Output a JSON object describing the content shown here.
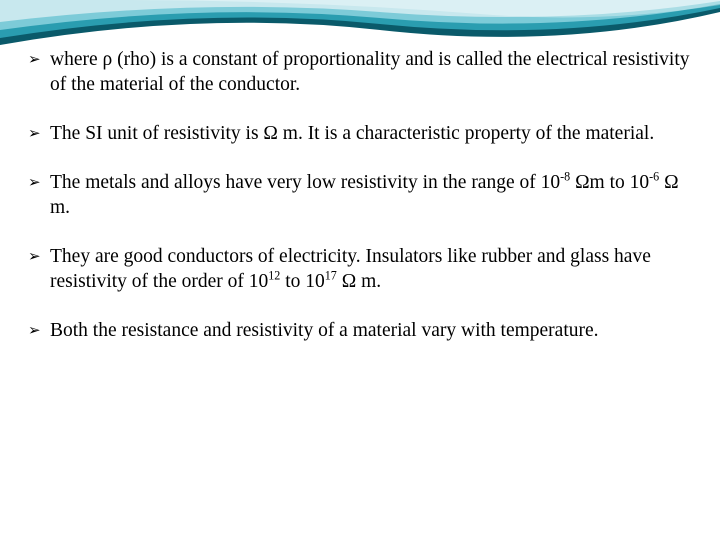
{
  "slide": {
    "background_color": "#ffffff",
    "text_color": "#000000",
    "font_family": "Georgia, serif",
    "font_size_pt": 19.5,
    "bullet_glyph": "➢",
    "decorative_swoosh": {
      "colors": [
        "#0a5a6a",
        "#2a9db0",
        "#7dcbd8",
        "#c8e8ee"
      ],
      "description": "layered teal/cyan curved bands at top"
    },
    "bullets": [
      {
        "text_html": "where ρ (rho) is a constant of proportionality and is called the electrical resistivity of the material of the conductor."
      },
      {
        "text_html": "The SI unit of resistivity is Ω m. It is a characteristic property of the material."
      },
      {
        "text_html": "The metals and alloys have very low resistivity in the range of 10<sup>-8</sup> Ωm to 10<sup>-6</sup> Ω m."
      },
      {
        "text_html": "They are good conductors of electricity. Insulators like rubber and glass have resistivity of the order of 10<sup>12</sup> to 10<sup>17</sup> Ω m."
      },
      {
        "text_html": "Both the resistance and resistivity of a material vary with temperature."
      }
    ]
  }
}
